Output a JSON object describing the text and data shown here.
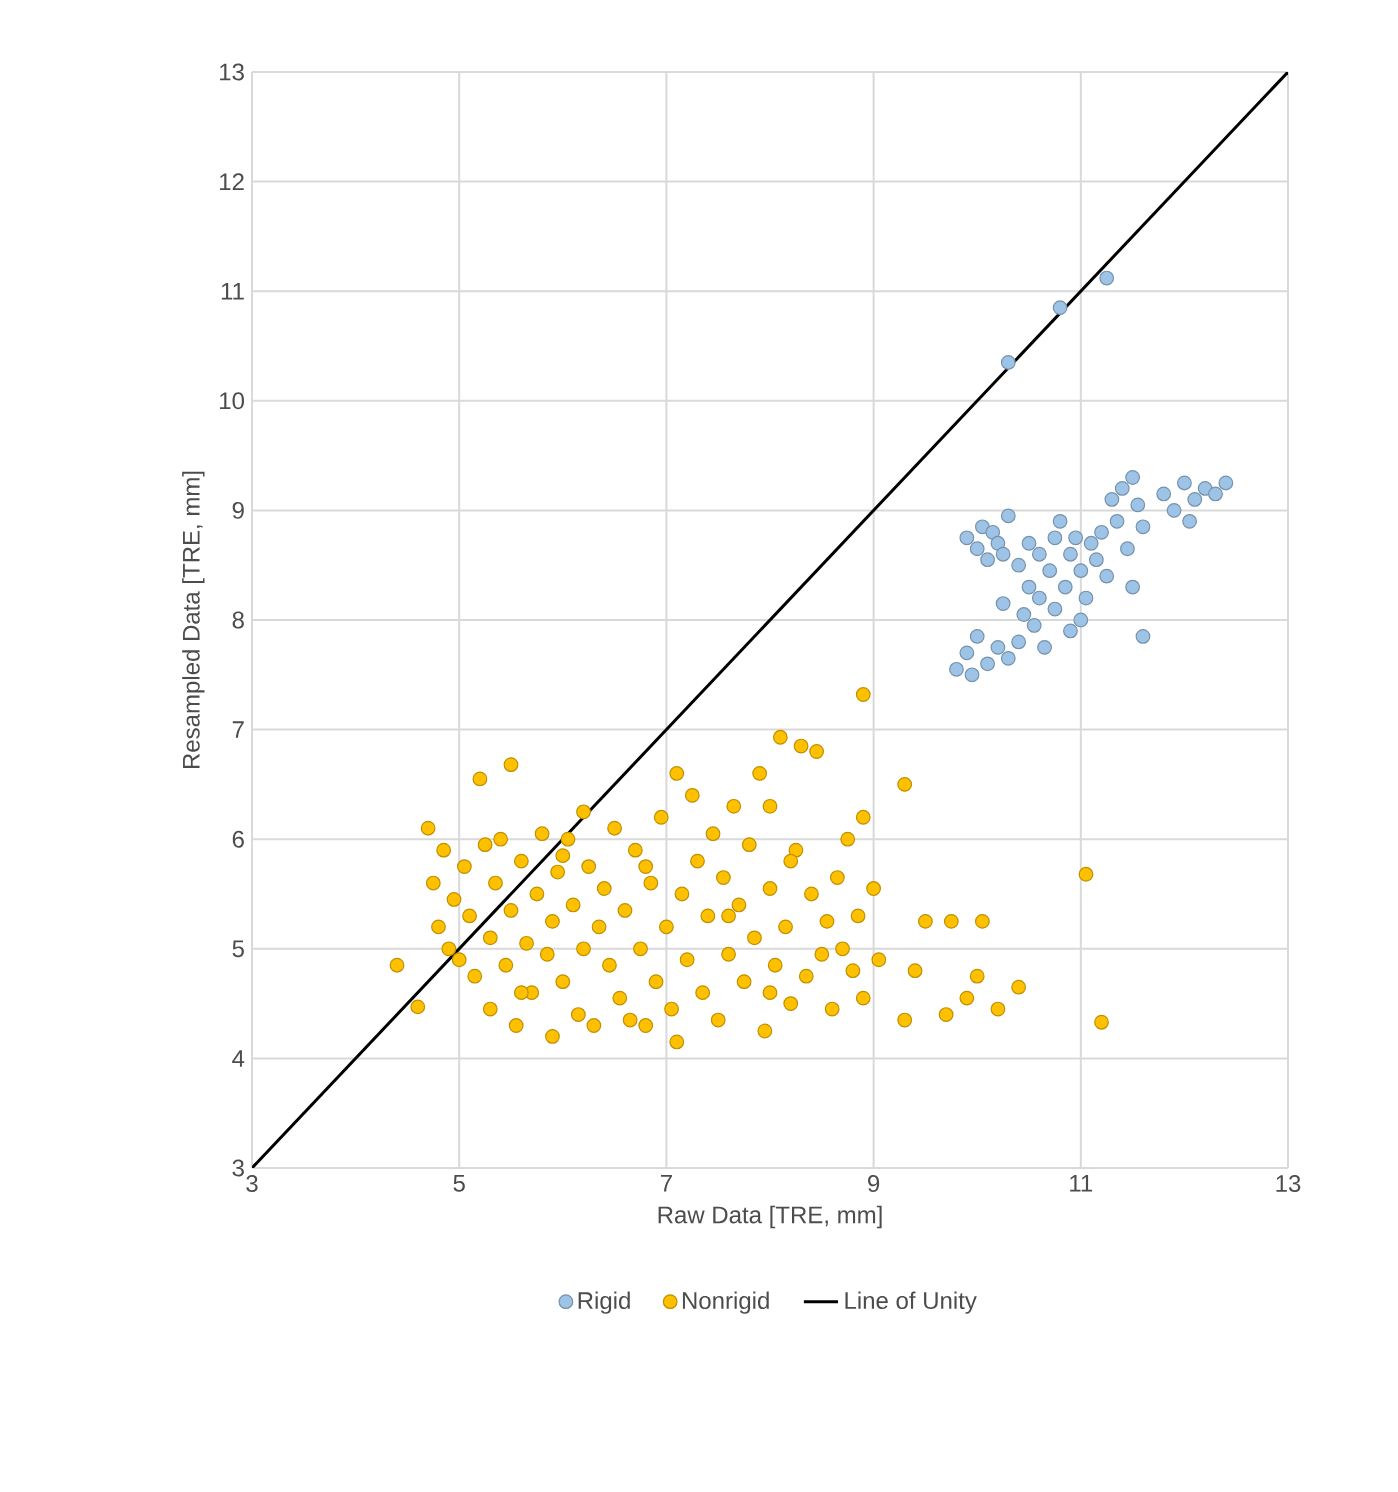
{
  "chart_data": {
    "type": "scatter",
    "xlabel": "Raw Data [TRE, mm]",
    "ylabel": "Resampled Data [TRE, mm]",
    "xlim": [
      3,
      13
    ],
    "ylim": [
      3,
      13
    ],
    "xticks": [
      3,
      5,
      7,
      9,
      11,
      13
    ],
    "yticks": [
      3,
      4,
      5,
      6,
      7,
      8,
      9,
      10,
      11,
      12,
      13
    ],
    "grid": true,
    "legend": "bottom",
    "series": [
      {
        "name": "Rigid",
        "marker": "circle",
        "color": "#9dc3e6",
        "x": [
          10.3,
          10.8,
          11.25,
          9.9,
          10.0,
          10.05,
          10.1,
          10.15,
          10.2,
          10.3,
          10.25,
          9.8,
          9.9,
          9.95,
          10.0,
          10.1,
          10.2,
          10.25,
          10.3,
          10.4,
          10.45,
          10.5,
          10.55,
          10.6,
          10.6,
          10.65,
          10.7,
          10.75,
          10.75,
          10.8,
          10.85,
          10.9,
          10.9,
          10.95,
          11.0,
          11.05,
          11.1,
          11.15,
          11.2,
          11.25,
          11.3,
          11.35,
          11.4,
          11.45,
          11.5,
          11.55,
          11.6,
          11.5,
          11.6,
          11.8,
          11.9,
          12.0,
          12.05,
          12.1,
          12.2,
          12.3,
          12.4,
          10.5,
          10.4,
          11.0
        ],
        "values": [
          10.35,
          10.85,
          11.12,
          8.75,
          8.65,
          8.85,
          8.55,
          8.8,
          8.7,
          8.95,
          8.6,
          7.55,
          7.7,
          7.5,
          7.85,
          7.6,
          7.75,
          8.15,
          7.65,
          7.8,
          8.05,
          8.3,
          7.95,
          8.6,
          8.2,
          7.75,
          8.45,
          8.75,
          8.1,
          8.9,
          8.3,
          7.9,
          8.6,
          8.75,
          8.45,
          8.2,
          8.7,
          8.55,
          8.8,
          8.4,
          9.1,
          8.9,
          9.2,
          8.65,
          9.3,
          9.05,
          8.85,
          8.3,
          7.85,
          9.15,
          9.0,
          9.25,
          8.9,
          9.1,
          9.2,
          9.15,
          9.25,
          8.7,
          8.5,
          8.0
        ]
      },
      {
        "name": "Nonrigid",
        "marker": "circle",
        "color": "#ffc000",
        "x": [
          4.4,
          4.6,
          4.7,
          4.75,
          4.8,
          4.85,
          4.9,
          4.95,
          5.0,
          5.05,
          5.1,
          5.15,
          5.2,
          5.25,
          5.3,
          5.3,
          5.35,
          5.4,
          5.45,
          5.5,
          5.5,
          5.55,
          5.6,
          5.65,
          5.7,
          5.75,
          5.8,
          5.85,
          5.9,
          5.9,
          5.95,
          6.0,
          6.05,
          6.1,
          6.15,
          6.2,
          6.2,
          6.25,
          6.3,
          6.35,
          6.4,
          6.45,
          6.5,
          6.55,
          6.6,
          6.65,
          6.7,
          6.75,
          6.8,
          6.85,
          6.9,
          6.95,
          7.0,
          7.05,
          7.1,
          7.1,
          7.15,
          7.2,
          7.25,
          7.3,
          7.35,
          7.4,
          7.45,
          7.5,
          7.55,
          7.6,
          7.65,
          7.7,
          7.75,
          7.8,
          7.85,
          7.9,
          7.95,
          8.0,
          8.0,
          8.05,
          8.1,
          8.15,
          8.2,
          8.25,
          8.3,
          8.35,
          8.4,
          8.45,
          8.5,
          8.55,
          8.6,
          8.65,
          8.7,
          8.75,
          8.8,
          8.85,
          8.9,
          8.9,
          8.9,
          9.0,
          9.05,
          9.3,
          9.3,
          9.4,
          9.5,
          9.7,
          9.75,
          9.9,
          10.0,
          10.05,
          10.2,
          10.4,
          11.05,
          11.2,
          6.0,
          5.6,
          6.8,
          7.6,
          8.2,
          8.0
        ],
        "values": [
          4.85,
          4.47,
          6.1,
          5.6,
          5.2,
          5.9,
          5.0,
          5.45,
          4.9,
          5.75,
          5.3,
          4.75,
          6.55,
          5.95,
          5.1,
          4.45,
          5.6,
          6.0,
          4.85,
          5.35,
          6.68,
          4.3,
          5.8,
          5.05,
          4.6,
          5.5,
          6.05,
          4.95,
          5.25,
          4.2,
          5.7,
          4.7,
          6.0,
          5.4,
          4.4,
          6.25,
          5.0,
          5.75,
          4.3,
          5.2,
          5.55,
          4.85,
          6.1,
          4.55,
          5.35,
          4.35,
          5.9,
          5.0,
          4.3,
          5.6,
          4.7,
          6.2,
          5.2,
          4.45,
          6.6,
          4.15,
          5.5,
          4.9,
          6.4,
          5.8,
          4.6,
          5.3,
          6.05,
          4.35,
          5.65,
          4.95,
          6.3,
          5.4,
          4.7,
          5.95,
          5.1,
          6.6,
          4.25,
          5.55,
          6.3,
          4.85,
          6.93,
          5.2,
          4.5,
          5.9,
          6.85,
          4.75,
          5.5,
          6.8,
          4.95,
          5.25,
          4.45,
          5.65,
          5.0,
          6.0,
          4.8,
          5.3,
          7.32,
          6.2,
          4.55,
          5.55,
          4.9,
          6.5,
          4.35,
          4.8,
          5.25,
          4.4,
          5.25,
          4.55,
          4.75,
          5.25,
          4.45,
          4.65,
          5.68,
          4.33,
          5.85,
          4.6,
          5.75,
          5.3,
          5.8,
          4.6
        ]
      },
      {
        "name": "Line of Unity",
        "type": "line",
        "marker": "none",
        "color": "#000000",
        "x": [
          3,
          13
        ],
        "values": [
          3,
          13
        ]
      }
    ]
  }
}
